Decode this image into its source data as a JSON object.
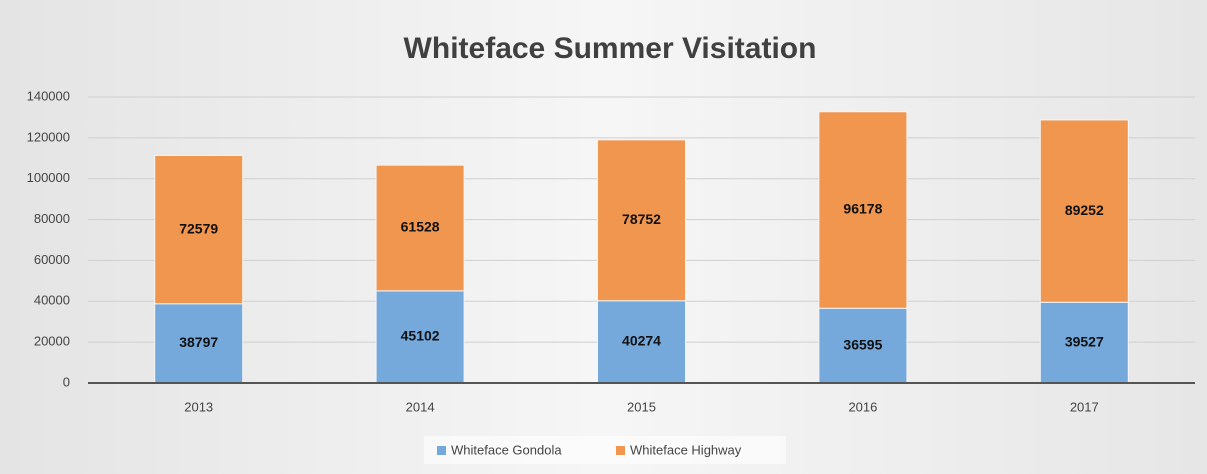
{
  "chart_data": {
    "type": "stacked_bar",
    "title": "Whiteface Summer Visitation",
    "categories": [
      "2013",
      "2014",
      "2015",
      "2016",
      "2017"
    ],
    "series": [
      {
        "name": "Whiteface Gondola",
        "color": "#75a9dc",
        "values": [
          38797,
          45102,
          40274,
          36595,
          39527
        ]
      },
      {
        "name": "Whiteface Highway",
        "color": "#f0964f",
        "values": [
          72579,
          61528,
          78752,
          96178,
          89252
        ]
      }
    ],
    "ylim": [
      0,
      140000
    ],
    "yticks": [
      0,
      20000,
      40000,
      60000,
      80000,
      100000,
      120000,
      140000
    ],
    "grid": true,
    "legend": "bottom"
  }
}
